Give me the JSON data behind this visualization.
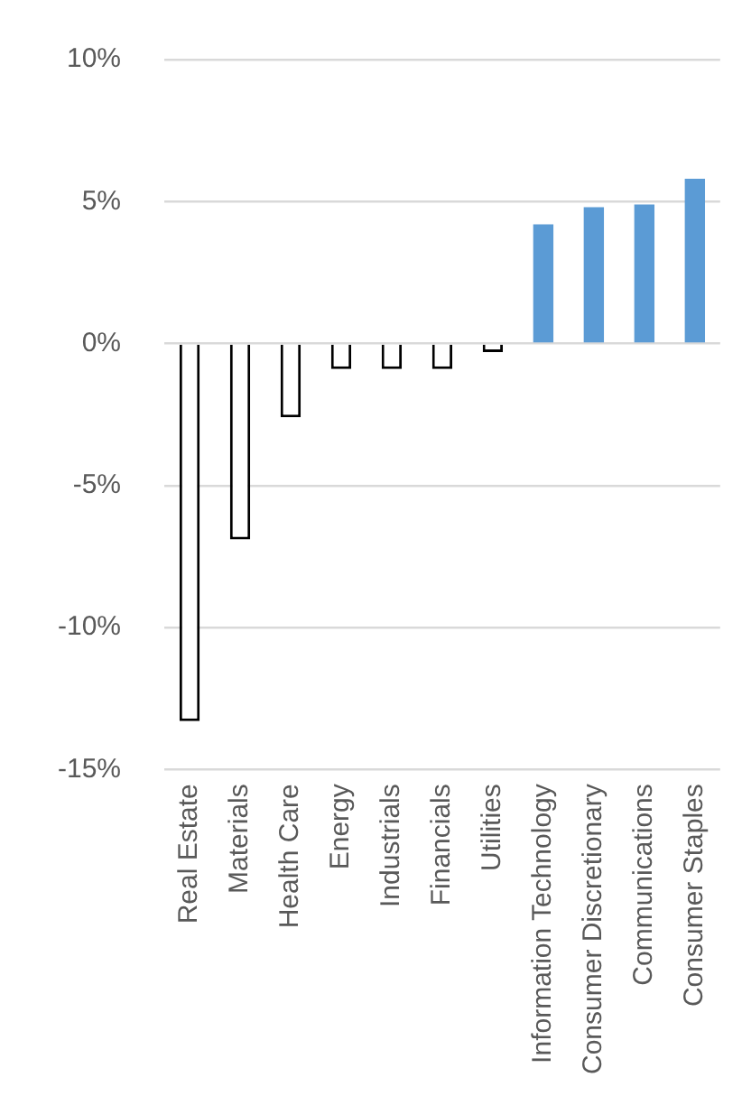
{
  "chart_data": {
    "type": "bar",
    "categories": [
      "Real Estate",
      "Materials",
      "Health Care",
      "Energy",
      "Industrials",
      "Financials",
      "Utilities",
      "Information Technology",
      "Consumer Discretionary",
      "Communications",
      "Consumer Staples"
    ],
    "values": [
      -13.3,
      -6.9,
      -2.6,
      -0.9,
      -0.9,
      -0.9,
      -0.3,
      4.2,
      4.8,
      4.9,
      5.8
    ],
    "colors": [
      "#ffffff",
      "#ffffff",
      "#ffffff",
      "#ffffff",
      "#ffffff",
      "#ffffff",
      "#ffffff",
      "#5b9bd5",
      "#5b9bd5",
      "#5b9bd5",
      "#5b9bd5"
    ],
    "ylim": [
      -15,
      10
    ],
    "yticks": [
      {
        "value": -15,
        "label": "-15%"
      },
      {
        "value": -10,
        "label": "-10%"
      },
      {
        "value": -5,
        "label": "-5%"
      },
      {
        "value": 0,
        "label": "0%"
      },
      {
        "value": 5,
        "label": "5%"
      },
      {
        "value": 10,
        "label": "10%"
      }
    ],
    "grid": "y",
    "legend": false
  }
}
